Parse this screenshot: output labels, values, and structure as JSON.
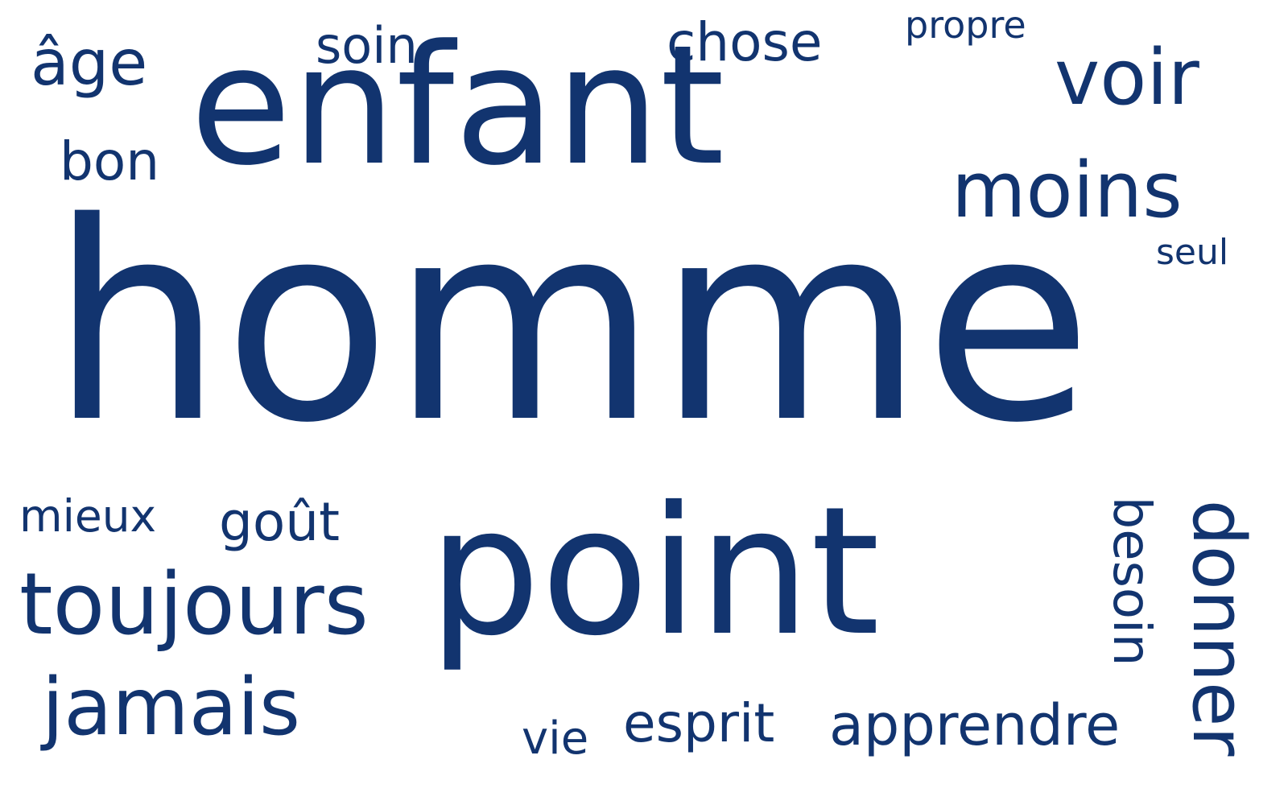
{
  "cloud": {
    "text_color": "#12346f",
    "words": {
      "homme": "homme",
      "enfant": "enfant",
      "point": "point",
      "voir": "voir",
      "moins": "moins",
      "seul": "seul",
      "age": "âge",
      "soin": "soin",
      "chose": "chose",
      "propre": "propre",
      "bon": "bon",
      "mieux": "mieux",
      "gout": "goût",
      "toujours": "toujours",
      "jamais": "jamais",
      "vie": "vie",
      "esprit": "esprit",
      "apprendre": "apprendre",
      "besoin": "besoin",
      "donner": "donner"
    }
  }
}
